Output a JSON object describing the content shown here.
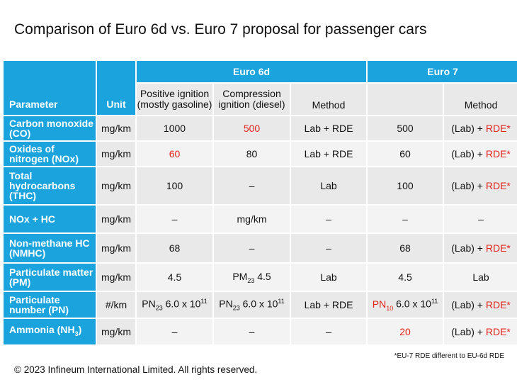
{
  "title": "Comparison of Euro 6d vs. Euro 7 proposal for passenger cars",
  "headers": {
    "parameter": "Parameter",
    "unit": "Unit",
    "euro6d": "Euro 6d",
    "euro7": "Euro 7",
    "positive_ignition": "Positive ignition (mostly gasoline)",
    "compression_ignition": "Compression ignition (diesel)",
    "method_6d": "Method",
    "method_7": "Method"
  },
  "rows": [
    {
      "parameter": "Carbon monoxide (CO)",
      "unit": "mg/km",
      "pi": "1000",
      "ci": "500",
      "method6d": "Lab + RDE",
      "euro7": "500",
      "method7_prefix": "(Lab) + ",
      "method7_rde": "RDE*"
    },
    {
      "parameter": "Oxides of nitrogen (NOx)",
      "unit": "mg/km",
      "pi": "60",
      "ci": "80",
      "method6d": "Lab + RDE",
      "euro7": "60",
      "method7_prefix": "(Lab) + ",
      "method7_rde": "RDE*"
    },
    {
      "parameter": "Total hydrocarbons (THC)",
      "unit": "mg/km",
      "pi": "100",
      "ci": "–",
      "method6d": "Lab",
      "euro7": "100",
      "method7_prefix": "(Lab) + ",
      "method7_rde": "RDE*"
    },
    {
      "parameter": "NOx + HC",
      "unit": "mg/km",
      "pi": "–",
      "ci": "mg/km",
      "method6d": "–",
      "euro7": "–",
      "method7": "–"
    },
    {
      "parameter": "Non-methane HC (NMHC)",
      "unit": "mg/km",
      "pi": "68",
      "ci": "–",
      "method6d": "–",
      "euro7": "68",
      "method7_prefix": "(Lab) + ",
      "method7_rde": "RDE*"
    },
    {
      "parameter": "Particulate matter (PM)",
      "unit": "mg/km",
      "pi": "4.5",
      "ci_prefix": "PM",
      "ci_sub": "23",
      "ci_value": " 4.5",
      "method6d": "Lab",
      "euro7": "4.5",
      "method7": "Lab"
    },
    {
      "parameter": "Particulate number (PN)",
      "unit": "#/km",
      "pi_prefix": "PN",
      "pi_sub": "23",
      "pi_value": " 6.0 x 10",
      "pi_sup": "11",
      "ci_prefix": "PN",
      "ci_sub": "23",
      "ci_value": " 6.0 x 10",
      "ci_sup": "11",
      "method6d": "Lab + RDE",
      "e7_prefix": "PN",
      "e7_sub": "10",
      "e7_value": " 6.0 x 10",
      "e7_sup": "11",
      "method7_prefix": "(Lab) + ",
      "method7_rde": "RDE*"
    },
    {
      "parameter_prefix": "Ammonia (NH",
      "parameter_sub": "3",
      "parameter_suffix": ")",
      "unit": "mg/km",
      "pi": "–",
      "ci": "–",
      "method6d": "–",
      "euro7": "20",
      "method7_prefix": "(Lab) + ",
      "method7_rde": "RDE*"
    }
  ],
  "footnote": "*EU-7 RDE different to EU-6d RDE",
  "copyright": "© 2023 Infineum International Limited. All rights reserved.",
  "colors": {
    "header_blue": "#1ba3dd",
    "highlight_red": "#e2231a",
    "cell_grey": "#e9e9e9"
  }
}
